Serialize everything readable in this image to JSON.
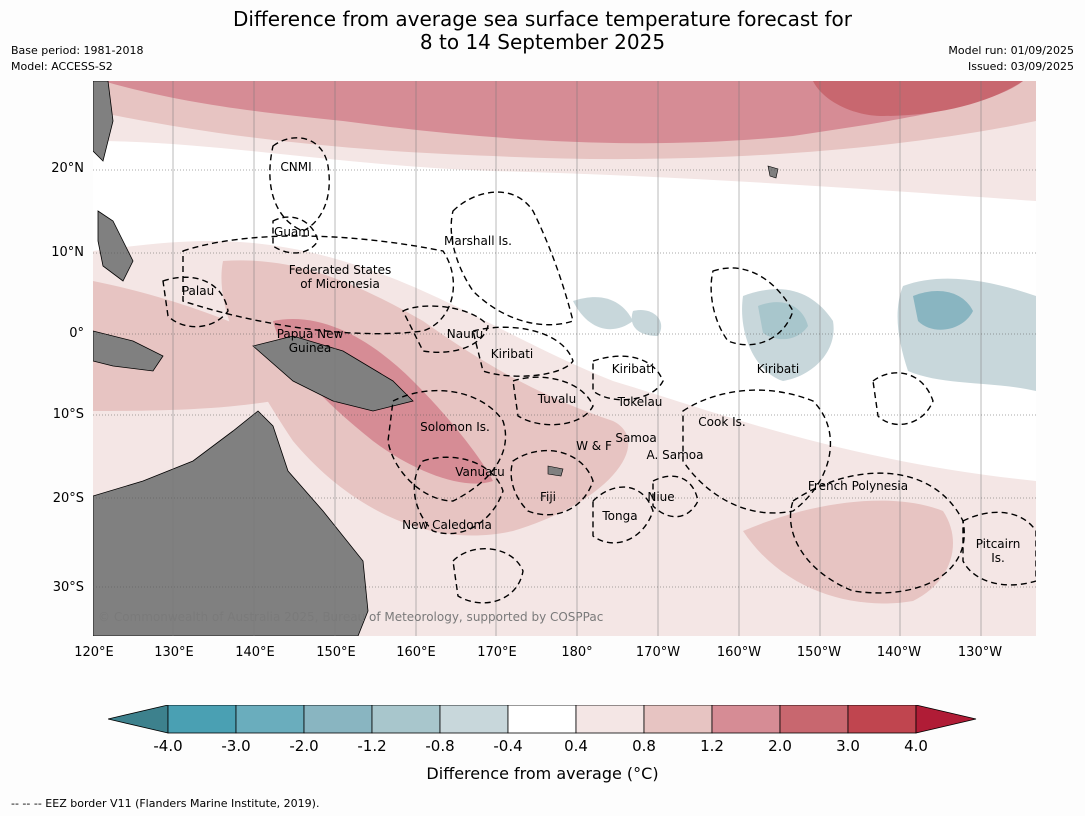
{
  "title_line1": "Difference from average sea surface temperature forecast for",
  "title_line2": "8 to 14 September 2025",
  "meta_left": {
    "base_period": "Base period: 1981-2018",
    "model": "Model: ACCESS-S2"
  },
  "meta_right": {
    "model_run": "Model run: 01/09/2025",
    "issued": "Issued: 03/09/2025"
  },
  "latitude_labels": [
    "20°N",
    "10°N",
    "0°",
    "10°S",
    "20°S",
    "30°S"
  ],
  "longitude_labels": [
    "120°E",
    "130°E",
    "140°E",
    "150°E",
    "160°E",
    "170°E",
    "180°",
    "170°W",
    "160°W",
    "150°W",
    "140°W",
    "130°W"
  ],
  "regions": [
    {
      "name": "CNMI"
    },
    {
      "name": "Guam"
    },
    {
      "name": "Marshall Is."
    },
    {
      "name": "Federated States\nof Micronesia"
    },
    {
      "name": "Palau"
    },
    {
      "name": "Nauru"
    },
    {
      "name": "Papua New\nGuinea"
    },
    {
      "name": "Kiribati"
    },
    {
      "name": "Kiribati"
    },
    {
      "name": "Kiribati"
    },
    {
      "name": "Tuvalu"
    },
    {
      "name": "Tokelau"
    },
    {
      "name": "Solomon Is."
    },
    {
      "name": "Cook Is."
    },
    {
      "name": "Samoa"
    },
    {
      "name": "W & F"
    },
    {
      "name": "A. Samoa"
    },
    {
      "name": "Vanuatu"
    },
    {
      "name": "Fiji"
    },
    {
      "name": "Niue"
    },
    {
      "name": "French Polynesia"
    },
    {
      "name": "Tonga"
    },
    {
      "name": "New Caledonia"
    },
    {
      "name": "Pitcairn\nIs."
    }
  ],
  "copyright": "© Commonwealth of Australia 2025, Bureau of Meteorology, supported by COSPPac",
  "colorbar": {
    "ticks": [
      "-4.0",
      "-3.0",
      "-2.0",
      "-1.2",
      "-0.8",
      "-0.4",
      "0.4",
      "0.8",
      "1.2",
      "2.0",
      "3.0",
      "4.0"
    ],
    "colors": [
      "#3d818d",
      "#4aa0b3",
      "#6aadbd",
      "#89b5c1",
      "#a8c6cc",
      "#c8d7db",
      "#ffffff",
      "#f4e6e5",
      "#e7c4c2",
      "#d68c95",
      "#c8676f",
      "#c0454f",
      "#b01c36"
    ],
    "title": "Difference from average (°C)"
  },
  "footnote": "--  --  -- EEZ border V11 (Flanders Marine Institute, 2019).",
  "map_colors": {
    "land": "#808080",
    "ocean_neutral": "#ffffff"
  }
}
